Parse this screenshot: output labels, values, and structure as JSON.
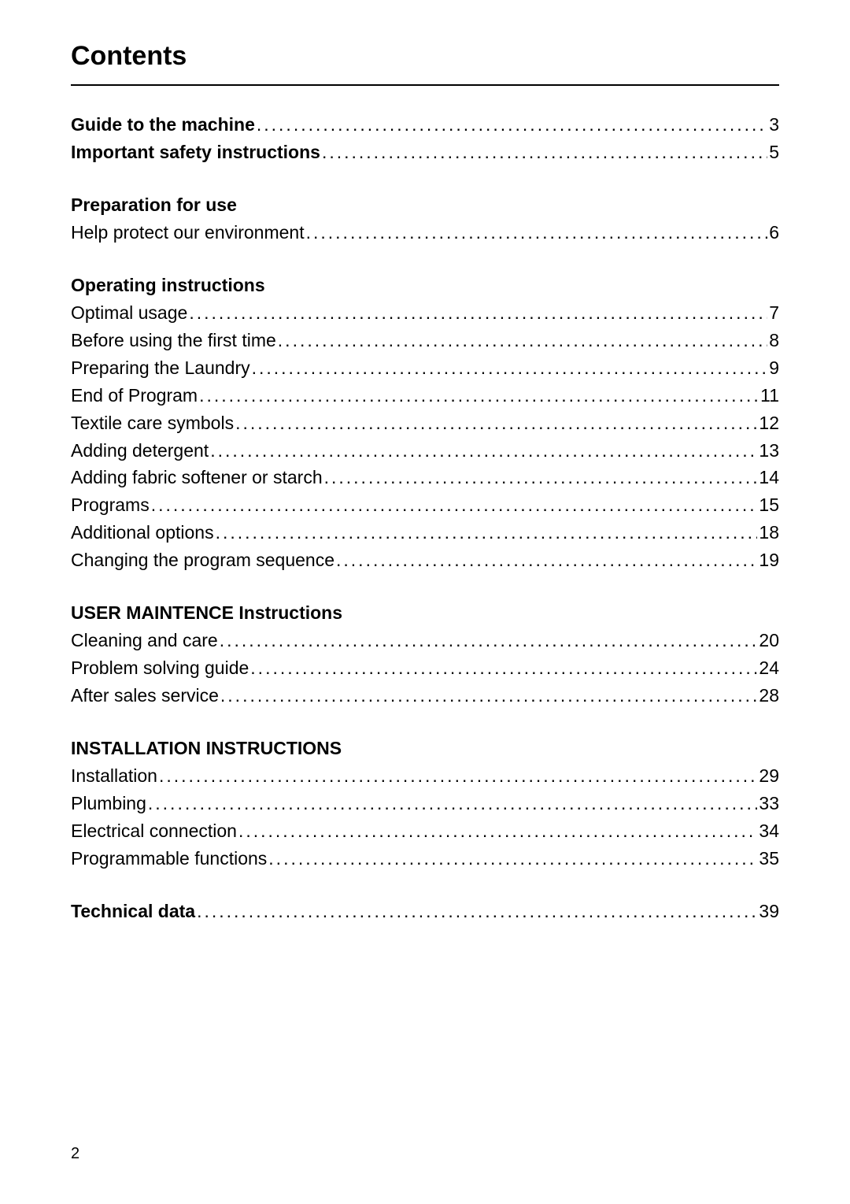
{
  "title": "Contents",
  "sections": [
    {
      "heading": null,
      "entries": [
        {
          "label": "Guide to the machine",
          "bold": true,
          "page": "3"
        },
        {
          "label": "Important safety instructions",
          "bold": true,
          "page": "5"
        }
      ]
    },
    {
      "heading": "Preparation for use",
      "entries": [
        {
          "label": "Help protect our environment",
          "bold": false,
          "page": "6"
        }
      ]
    },
    {
      "heading": "Operating instructions",
      "entries": [
        {
          "label": "Optimal usage",
          "bold": false,
          "page": "7"
        },
        {
          "label": "Before using the first time",
          "bold": false,
          "page": "8"
        },
        {
          "label": "Preparing the Laundry",
          "bold": false,
          "page": "9"
        },
        {
          "label": "End of Program",
          "bold": false,
          "page": "11"
        },
        {
          "label": "Textile care symbols",
          "bold": false,
          "page": "12"
        },
        {
          "label": "Adding detergent",
          "bold": false,
          "page": "13"
        },
        {
          "label": "Adding fabric softener or starch",
          "bold": false,
          "page": "14"
        },
        {
          "label": "Programs",
          "bold": false,
          "page": "15"
        },
        {
          "label": "Additional options",
          "bold": false,
          "page": "18"
        },
        {
          "label": "Changing the program sequence",
          "bold": false,
          "page": "19"
        }
      ]
    },
    {
      "heading": "USER MAINTENCE Instructions",
      "entries": [
        {
          "label": "Cleaning and care",
          "bold": false,
          "page": "20"
        },
        {
          "label": "Problem solving guide",
          "bold": false,
          "page": "24"
        },
        {
          "label": "After sales service",
          "bold": false,
          "page": "28"
        }
      ]
    },
    {
      "heading": "INSTALLATION INSTRUCTIONS",
      "entries": [
        {
          "label": "Installation",
          "bold": false,
          "page": "29"
        },
        {
          "label": "Plumbing",
          "bold": false,
          "page": "33"
        },
        {
          "label": "Electrical connection",
          "bold": false,
          "page": "34"
        },
        {
          "label": "Programmable functions",
          "bold": false,
          "page": "35"
        }
      ]
    },
    {
      "heading": null,
      "spaced": true,
      "entries": [
        {
          "label": "Technical data",
          "bold": true,
          "page": "39"
        }
      ]
    }
  ],
  "page_number": "2"
}
